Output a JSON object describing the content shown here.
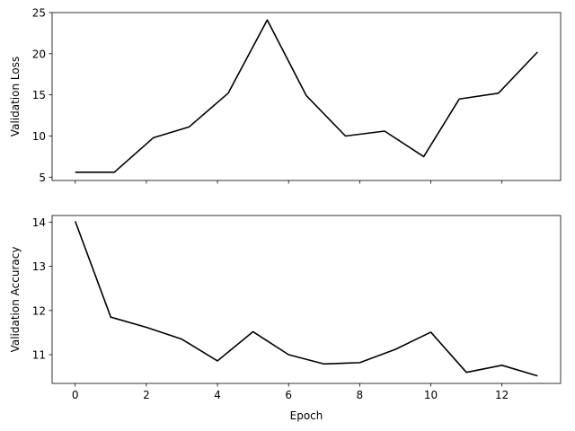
{
  "chart_data": [
    {
      "type": "line",
      "xlabel": "",
      "ylabel": "Validation Loss",
      "xlim": [
        -0.65,
        13.65
      ],
      "ylim": [
        4.6,
        25
      ],
      "x_ticks": [
        0,
        2,
        4,
        6,
        8,
        10,
        12
      ],
      "x_tick_labels_visible": false,
      "y_ticks": [
        5,
        10,
        15,
        20,
        25
      ],
      "y_tick_labels": [
        "5",
        "10",
        "15",
        "20",
        "25"
      ],
      "grid": false,
      "color": "#000000",
      "series": [
        {
          "x": [
            0,
            1.1,
            2.2,
            3.2,
            4.3,
            5.4,
            6.5,
            7.6,
            8.7,
            9.8,
            10.8,
            11.9,
            13
          ],
          "y": [
            5.6,
            5.6,
            9.8,
            11.1,
            15.2,
            24.1,
            14.9,
            10.0,
            10.6,
            7.5,
            14.5,
            15.2,
            20.2
          ]
        }
      ]
    },
    {
      "type": "line",
      "xlabel": "Epoch",
      "ylabel": "Validation Accuracy",
      "xlim": [
        -0.65,
        13.65
      ],
      "ylim": [
        10.35,
        14.15
      ],
      "x_ticks": [
        0,
        2,
        4,
        6,
        8,
        10,
        12
      ],
      "x_tick_labels": [
        "0",
        "2",
        "4",
        "6",
        "8",
        "10",
        "12"
      ],
      "y_ticks": [
        11,
        12,
        13,
        14
      ],
      "y_tick_labels": [
        "11",
        "12",
        "13",
        "14"
      ],
      "grid": false,
      "color": "#000000",
      "series": [
        {
          "x": [
            0,
            1,
            2,
            3,
            4,
            5,
            6,
            7,
            8,
            9,
            10,
            11,
            12,
            13
          ],
          "y": [
            14.02,
            11.85,
            11.62,
            11.35,
            10.86,
            11.52,
            11.0,
            10.79,
            10.82,
            11.12,
            11.51,
            10.6,
            10.76,
            10.52
          ]
        }
      ]
    }
  ]
}
